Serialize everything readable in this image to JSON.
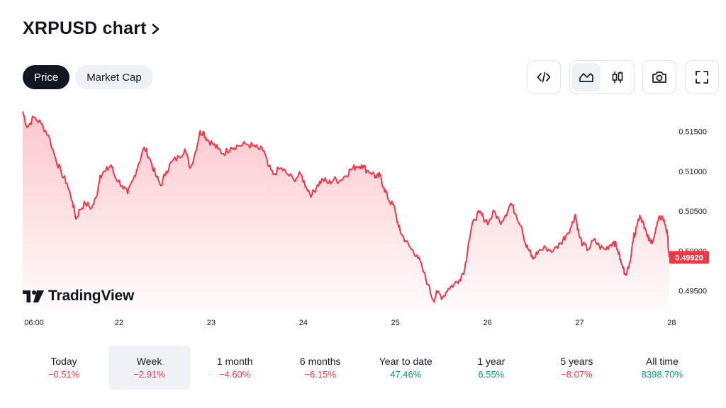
{
  "header": {
    "title": "XRPUSD chart"
  },
  "toggle": {
    "price_label": "Price",
    "market_cap_label": "Market Cap"
  },
  "toolbar": {
    "embed_icon": "code-icon",
    "line_icon": "area-chart-icon",
    "candle_icon": "candlestick-icon",
    "snapshot_icon": "camera-icon",
    "fullscreen_icon": "fullscreen-icon"
  },
  "branding": {
    "logo_text": "TradingView"
  },
  "colors": {
    "line": "#f23645",
    "negative": "#f23645",
    "positive": "#089981",
    "dark": "#131722",
    "button_bg": "#eef1f5"
  },
  "chart_data": {
    "type": "area",
    "title": "XRPUSD",
    "x_tick_labels": [
      "06:00",
      "22",
      "23",
      "24",
      "25",
      "26",
      "27",
      "28"
    ],
    "y_tick_labels": [
      "0.51500",
      "0.51000",
      "0.50500",
      "0.50000",
      "0.49500"
    ],
    "ylim": [
      0.4924,
      0.5178
    ],
    "last_price": "0.49920",
    "grid": false,
    "series": [
      {
        "points": [
          [
            0.0,
            0.5175
          ],
          [
            0.05,
            0.5155
          ],
          [
            0.12,
            0.5168
          ],
          [
            0.2,
            0.516
          ],
          [
            0.28,
            0.5145
          ],
          [
            0.36,
            0.5115
          ],
          [
            0.42,
            0.5098
          ],
          [
            0.48,
            0.5085
          ],
          [
            0.54,
            0.5062
          ],
          [
            0.58,
            0.504
          ],
          [
            0.62,
            0.5052
          ],
          [
            0.68,
            0.506
          ],
          [
            0.75,
            0.5054
          ],
          [
            0.8,
            0.5068
          ],
          [
            0.84,
            0.5095
          ],
          [
            0.9,
            0.51
          ],
          [
            0.96,
            0.5108
          ],
          [
            1.0,
            0.5094
          ],
          [
            1.08,
            0.5082
          ],
          [
            1.14,
            0.5072
          ],
          [
            1.2,
            0.509
          ],
          [
            1.26,
            0.511
          ],
          [
            1.32,
            0.513
          ],
          [
            1.38,
            0.5116
          ],
          [
            1.44,
            0.5096
          ],
          [
            1.5,
            0.5082
          ],
          [
            1.56,
            0.51
          ],
          [
            1.62,
            0.5112
          ],
          [
            1.7,
            0.5118
          ],
          [
            1.76,
            0.5128
          ],
          [
            1.82,
            0.5104
          ],
          [
            1.88,
            0.5126
          ],
          [
            1.92,
            0.5148
          ],
          [
            1.96,
            0.515
          ],
          [
            2.0,
            0.514
          ],
          [
            2.06,
            0.5135
          ],
          [
            2.12,
            0.5128
          ],
          [
            2.18,
            0.5122
          ],
          [
            2.26,
            0.513
          ],
          [
            2.34,
            0.5132
          ],
          [
            2.42,
            0.5134
          ],
          [
            2.5,
            0.5132
          ],
          [
            2.56,
            0.5128
          ],
          [
            2.62,
            0.5126
          ],
          [
            2.66,
            0.5108
          ],
          [
            2.72,
            0.5096
          ],
          [
            2.8,
            0.5104
          ],
          [
            2.86,
            0.5098
          ],
          [
            2.94,
            0.509
          ],
          [
            3.02,
            0.5096
          ],
          [
            3.08,
            0.508
          ],
          [
            3.14,
            0.507
          ],
          [
            3.2,
            0.5083
          ],
          [
            3.26,
            0.509
          ],
          [
            3.32,
            0.5085
          ],
          [
            3.38,
            0.509
          ],
          [
            3.44,
            0.5088
          ],
          [
            3.5,
            0.5094
          ],
          [
            3.56,
            0.5102
          ],
          [
            3.62,
            0.5106
          ],
          [
            3.68,
            0.5108
          ],
          [
            3.74,
            0.5101
          ],
          [
            3.8,
            0.5098
          ],
          [
            3.84,
            0.5092
          ],
          [
            3.88,
            0.5095
          ],
          [
            3.92,
            0.508
          ],
          [
            3.96,
            0.5068
          ],
          [
            4.0,
            0.506
          ],
          [
            4.04,
            0.5054
          ],
          [
            4.08,
            0.503
          ],
          [
            4.12,
            0.502
          ],
          [
            4.16,
            0.5012
          ],
          [
            4.22,
            0.5002
          ],
          [
            4.28,
            0.4995
          ],
          [
            4.34,
            0.4978
          ],
          [
            4.4,
            0.4958
          ],
          [
            4.46,
            0.4938
          ],
          [
            4.5,
            0.4948
          ],
          [
            4.56,
            0.4942
          ],
          [
            4.62,
            0.4953
          ],
          [
            4.68,
            0.4958
          ],
          [
            4.74,
            0.4964
          ],
          [
            4.8,
            0.4978
          ],
          [
            4.84,
            0.501
          ],
          [
            4.9,
            0.504
          ],
          [
            4.96,
            0.5048
          ],
          [
            5.0,
            0.5042
          ],
          [
            5.06,
            0.5036
          ],
          [
            5.12,
            0.505
          ],
          [
            5.18,
            0.5036
          ],
          [
            5.24,
            0.5045
          ],
          [
            5.3,
            0.506
          ],
          [
            5.36,
            0.5045
          ],
          [
            5.42,
            0.503
          ],
          [
            5.46,
            0.5008
          ],
          [
            5.5,
            0.5
          ],
          [
            5.54,
            0.499
          ],
          [
            5.6,
            0.5
          ],
          [
            5.68,
            0.5004
          ],
          [
            5.76,
            0.5
          ],
          [
            5.84,
            0.501
          ],
          [
            5.9,
            0.502
          ],
          [
            5.96,
            0.5032
          ],
          [
            6.0,
            0.5046
          ],
          [
            6.04,
            0.502
          ],
          [
            6.08,
            0.5008
          ],
          [
            6.14,
            0.5002
          ],
          [
            6.2,
            0.5014
          ],
          [
            6.26,
            0.5006
          ],
          [
            6.32,
            0.5002
          ],
          [
            6.38,
            0.5008
          ],
          [
            6.42,
            0.5012
          ],
          [
            6.46,
            0.5002
          ],
          [
            6.5,
            0.4984
          ],
          [
            6.54,
            0.4972
          ],
          [
            6.58,
            0.4978
          ],
          [
            6.62,
            0.501
          ],
          [
            6.66,
            0.503
          ],
          [
            6.7,
            0.5045
          ],
          [
            6.74,
            0.5036
          ],
          [
            6.78,
            0.5018
          ],
          [
            6.82,
            0.501
          ],
          [
            6.86,
            0.502
          ],
          [
            6.9,
            0.5038
          ],
          [
            6.94,
            0.5044
          ],
          [
            6.98,
            0.5032
          ],
          [
            7.0,
            0.502
          ],
          [
            7.02,
            0.4992
          ]
        ]
      }
    ]
  },
  "ranges": [
    {
      "label": "Today",
      "value": "−0.51%",
      "sign": "neg"
    },
    {
      "label": "Week",
      "value": "−2.91%",
      "sign": "neg"
    },
    {
      "label": "1 month",
      "value": "−4.60%",
      "sign": "neg"
    },
    {
      "label": "6 months",
      "value": "−6.15%",
      "sign": "neg"
    },
    {
      "label": "Year to date",
      "value": "47.46%",
      "sign": "pos"
    },
    {
      "label": "1 year",
      "value": "6.55%",
      "sign": "pos"
    },
    {
      "label": "5 years",
      "value": "−8.07%",
      "sign": "neg"
    },
    {
      "label": "All time",
      "value": "8398.70%",
      "sign": "pos"
    }
  ]
}
